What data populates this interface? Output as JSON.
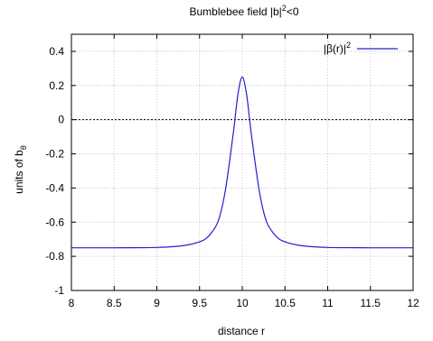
{
  "chart_data": {
    "type": "line",
    "title": "Bumblebee field  |b|",
    "title_sup": "2",
    "title_tail": "<0",
    "xlabel": "distance r",
    "ylabel": "units of b",
    "ylabel_sub": "θ",
    "xlim": [
      8,
      12
    ],
    "ylim": [
      -1,
      0.5
    ],
    "xticks": [
      8,
      8.5,
      9,
      9.5,
      10,
      10.5,
      11,
      11.5,
      12
    ],
    "xtick_labels": [
      "8",
      "8.5",
      "9",
      "9.5",
      "10",
      "10.5",
      "11",
      "11.5",
      "12"
    ],
    "yticks": [
      -1,
      -0.8,
      -0.6,
      -0.4,
      -0.2,
      0,
      0.2,
      0.4
    ],
    "ytick_labels": [
      "-1",
      "-0.8",
      "-0.6",
      "-0.4",
      "-0.2",
      "0",
      "0.2",
      "0.4"
    ],
    "grid": true,
    "zero_line": true,
    "legend_placement": "top-right",
    "series": [
      {
        "name": "|β(r)|",
        "name_sup": "2",
        "color": "#2020d0",
        "x": [
          8.0,
          8.5,
          9.0,
          9.3,
          9.5,
          9.6,
          9.7,
          9.75,
          9.8,
          9.85,
          9.9,
          9.95,
          10.0,
          10.05,
          10.1,
          10.15,
          10.2,
          10.25,
          10.3,
          10.4,
          10.5,
          10.7,
          11.0,
          11.5,
          12.0
        ],
        "y": [
          -0.75,
          -0.75,
          -0.748,
          -0.738,
          -0.715,
          -0.685,
          -0.615,
          -0.54,
          -0.42,
          -0.25,
          -0.06,
          0.15,
          0.25,
          0.15,
          -0.06,
          -0.25,
          -0.42,
          -0.54,
          -0.615,
          -0.685,
          -0.715,
          -0.738,
          -0.748,
          -0.75,
          -0.75
        ]
      }
    ]
  }
}
